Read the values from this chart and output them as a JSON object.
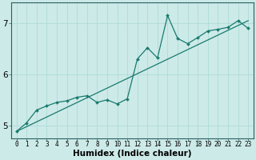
{
  "xlabel": "Humidex (Indice chaleur)",
  "bg_color": "#cceae8",
  "grid_color": "#b0dbd8",
  "line_color": "#1a7a6e",
  "xlim": [
    -0.5,
    23.5
  ],
  "ylim": [
    4.75,
    7.4
  ],
  "yticks": [
    5,
    6,
    7
  ],
  "xticks": [
    0,
    1,
    2,
    3,
    4,
    5,
    6,
    7,
    8,
    9,
    10,
    11,
    12,
    13,
    14,
    15,
    16,
    17,
    18,
    19,
    20,
    21,
    22,
    23
  ],
  "line_x": [
    0,
    1,
    2,
    3,
    4,
    5,
    6,
    7,
    8,
    9,
    10,
    11,
    12,
    13,
    14,
    15,
    16,
    17,
    18,
    19,
    20,
    21,
    22,
    23
  ],
  "line_y": [
    4.88,
    5.05,
    5.3,
    5.38,
    5.45,
    5.48,
    5.55,
    5.58,
    5.45,
    5.5,
    5.42,
    5.52,
    6.3,
    6.52,
    6.32,
    7.15,
    6.7,
    6.6,
    6.72,
    6.85,
    6.88,
    6.92,
    7.05,
    6.9
  ],
  "trend_x": [
    0,
    23
  ],
  "trend_y": [
    4.88,
    7.05
  ],
  "xlabel_fontsize": 7.5,
  "tick_fontsize": 5.5,
  "ytick_fontsize": 7.5
}
